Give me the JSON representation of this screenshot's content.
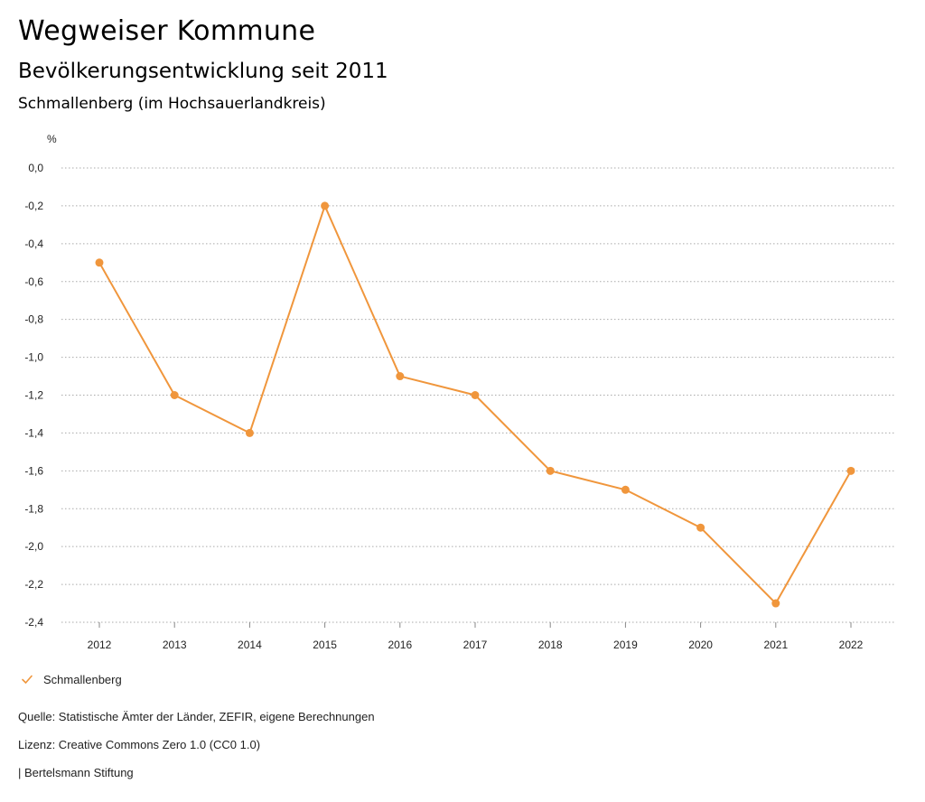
{
  "header": {
    "title": "Wegweiser Kommune",
    "subtitle": "Bevölkerungsentwicklung seit 2011",
    "region": "Schmallenberg (im Hochsauerlandkreis)"
  },
  "chart_data": {
    "type": "line",
    "title": "Bevölkerungsentwicklung seit 2011",
    "xlabel": "",
    "ylabel": "%",
    "x": [
      "2012",
      "2013",
      "2014",
      "2015",
      "2016",
      "2017",
      "2018",
      "2019",
      "2020",
      "2021",
      "2022"
    ],
    "series": [
      {
        "name": "Schmallenberg",
        "values": [
          -0.5,
          -1.2,
          -1.4,
          -0.2,
          -1.1,
          -1.2,
          -1.6,
          -1.7,
          -1.9,
          -2.3,
          -1.6
        ]
      }
    ],
    "ylim": [
      -2.4,
      0.0
    ],
    "yticks": [
      0.0,
      -0.2,
      -0.4,
      -0.6,
      -0.8,
      -1.0,
      -1.2,
      -1.4,
      -1.6,
      -1.8,
      -2.0,
      -2.2,
      -2.4
    ],
    "ytick_labels": [
      "0,0",
      "-0,2",
      "-0,4",
      "-0,6",
      "-0,8",
      "-1,0",
      "-1,2",
      "-1,4",
      "-1,6",
      "-1,8",
      "-2,0",
      "-2,2",
      "-2,4"
    ],
    "grid": true,
    "legend": "bottom-left",
    "color": "#f0963c"
  },
  "legend": {
    "label": "Schmallenberg"
  },
  "footer": {
    "source": "Quelle: Statistische Ämter der Länder, ZEFIR, eigene Berechnungen",
    "license": "Lizenz: Creative Commons Zero 1.0 (CC0 1.0)",
    "publisher": "| Bertelsmann Stiftung"
  }
}
